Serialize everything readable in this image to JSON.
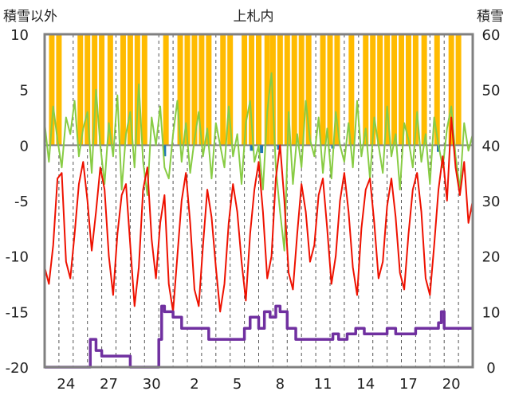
{
  "chart_data": {
    "type": "line",
    "title": "上札内",
    "left_axis_label": "積雪以外",
    "right_axis_label": "積雪",
    "left_ylim": [
      -20,
      10
    ],
    "right_ylim": [
      0,
      60
    ],
    "left_ticks": [
      "10",
      "5",
      "0",
      "-5",
      "-10",
      "-15",
      "-20"
    ],
    "right_ticks": [
      "60",
      "50",
      "40",
      "30",
      "20",
      "10",
      "0"
    ],
    "x_ticks": [
      "24",
      "27",
      "30",
      "2",
      "5",
      "8",
      "11",
      "14",
      "17",
      "20"
    ],
    "x_tick_positions": [
      1.5,
      4.5,
      7.5,
      10.5,
      13.5,
      16.5,
      19.5,
      22.5,
      25.5,
      28.5
    ],
    "x_range": [
      0,
      30
    ],
    "grid": "vertical dashed daily",
    "colors": {
      "temperature": "#ee1100",
      "sunshine": "#ffbb00",
      "wind": "#88cc44",
      "precipitation": "#1f77b4",
      "snow_depth": "#7030a0",
      "zero_line": "#808080",
      "frame": "#808080"
    },
    "series": [
      {
        "key": "sunshine",
        "axis": "left",
        "style": "bar",
        "x": [
          0.5,
          1.0,
          2.5,
          3.0,
          3.5,
          4.0,
          4.6,
          5.5,
          6.0,
          6.5,
          7.0,
          8.5,
          9.5,
          10.0,
          10.5,
          11.0,
          11.5,
          12.5,
          13.0,
          14.0,
          14.5,
          15.0,
          15.6,
          16.0,
          16.5,
          17.0,
          17.5,
          18.0,
          18.5,
          19.5,
          20.0,
          20.5,
          21.5,
          22.5,
          23.0,
          23.5,
          24.0,
          24.5,
          25.0,
          25.5,
          26.0,
          26.6,
          27.5,
          28.5,
          29.0
        ],
        "values": [
          10,
          10,
          10,
          10,
          10,
          10,
          10,
          10,
          10,
          10,
          10,
          10,
          10,
          10,
          10,
          10,
          10,
          10,
          10,
          10,
          10,
          10,
          10,
          10,
          10,
          10,
          10,
          10,
          10,
          10,
          10,
          10,
          10,
          10,
          10,
          10,
          10,
          10,
          10,
          10,
          10,
          10,
          10,
          10,
          10
        ]
      },
      {
        "key": "wind",
        "axis": "left",
        "style": "line",
        "x": [
          0.0,
          0.3,
          0.6,
          0.9,
          1.2,
          1.5,
          1.8,
          2.1,
          2.4,
          2.7,
          3.0,
          3.3,
          3.6,
          3.9,
          4.2,
          4.5,
          4.8,
          5.1,
          5.4,
          5.7,
          6.0,
          6.3,
          6.6,
          6.9,
          7.2,
          7.5,
          7.8,
          8.1,
          8.4,
          8.7,
          9.0,
          9.3,
          9.6,
          9.9,
          10.2,
          10.5,
          10.8,
          11.1,
          11.4,
          11.7,
          12.0,
          12.3,
          12.6,
          12.9,
          13.2,
          13.5,
          13.8,
          14.1,
          14.4,
          14.7,
          15.0,
          15.3,
          15.6,
          15.9,
          16.2,
          16.5,
          16.8,
          17.1,
          17.4,
          17.7,
          18.0,
          18.3,
          18.6,
          18.9,
          19.2,
          19.5,
          19.8,
          20.1,
          20.4,
          20.7,
          21.0,
          21.3,
          21.6,
          21.9,
          22.2,
          22.5,
          22.8,
          23.1,
          23.4,
          23.7,
          24.0,
          24.3,
          24.6,
          24.9,
          25.2,
          25.5,
          25.8,
          26.1,
          26.4,
          26.7,
          27.0,
          27.3,
          27.6,
          27.9,
          28.2,
          28.5,
          28.8,
          29.1,
          29.4,
          29.7,
          30.0
        ],
        "values": [
          2.0,
          -1.5,
          3.5,
          0.5,
          -2.0,
          2.5,
          1.0,
          4.0,
          -1.0,
          1.5,
          3.0,
          -2.5,
          5.0,
          0.0,
          -3.5,
          2.0,
          -1.0,
          4.5,
          -4.0,
          1.0,
          3.0,
          -2.0,
          5.5,
          -1.5,
          -4.5,
          2.5,
          0.0,
          3.5,
          -2.0,
          -3.0,
          1.0,
          4.0,
          -1.5,
          2.0,
          -2.5,
          0.5,
          3.0,
          -1.0,
          1.5,
          -3.0,
          2.0,
          0.0,
          -2.0,
          3.5,
          -1.0,
          1.0,
          -3.5,
          2.0,
          4.0,
          -1.5,
          0.0,
          -4.0,
          3.0,
          6.5,
          -2.0,
          -6.0,
          -9.5,
          3.0,
          -3.5,
          1.0,
          -2.0,
          4.0,
          0.5,
          -1.0,
          2.5,
          -2.5,
          1.5,
          -3.0,
          3.0,
          0.0,
          -1.5,
          2.0,
          -2.0,
          4.0,
          -1.0,
          1.5,
          -3.0,
          2.5,
          0.0,
          -2.5,
          3.5,
          -1.0,
          1.0,
          -4.0,
          2.0,
          0.5,
          -2.0,
          3.0,
          -1.5,
          1.0,
          -3.5,
          2.5,
          0.0,
          -2.0,
          1.5,
          3.5,
          -1.0,
          -4.0,
          2.0,
          -0.5,
          1.0
        ]
      },
      {
        "key": "temperature",
        "axis": "left",
        "style": "line",
        "x": [
          0.0,
          0.3,
          0.6,
          0.9,
          1.2,
          1.5,
          1.8,
          2.1,
          2.4,
          2.7,
          3.0,
          3.3,
          3.6,
          3.9,
          4.2,
          4.5,
          4.8,
          5.1,
          5.4,
          5.7,
          6.0,
          6.3,
          6.6,
          6.9,
          7.2,
          7.5,
          7.8,
          8.1,
          8.4,
          8.7,
          9.0,
          9.3,
          9.6,
          9.9,
          10.2,
          10.5,
          10.8,
          11.1,
          11.4,
          11.7,
          12.0,
          12.3,
          12.6,
          12.9,
          13.2,
          13.5,
          13.8,
          14.1,
          14.4,
          14.7,
          15.0,
          15.3,
          15.6,
          15.9,
          16.2,
          16.5,
          16.8,
          17.1,
          17.4,
          17.7,
          18.0,
          18.3,
          18.6,
          18.9,
          19.2,
          19.5,
          19.8,
          20.1,
          20.4,
          20.7,
          21.0,
          21.3,
          21.6,
          21.9,
          22.2,
          22.5,
          22.8,
          23.1,
          23.4,
          23.7,
          24.0,
          24.3,
          24.6,
          24.9,
          25.2,
          25.5,
          25.8,
          26.1,
          26.4,
          26.7,
          27.0,
          27.3,
          27.6,
          27.9,
          28.2,
          28.5,
          28.8,
          29.1,
          29.4,
          29.7,
          30.0
        ],
        "values": [
          -11.0,
          -12.5,
          -9.0,
          -3.0,
          -2.5,
          -10.5,
          -12.0,
          -8.0,
          -3.5,
          -1.5,
          -5.0,
          -9.5,
          -6.0,
          -2.0,
          -4.0,
          -10.0,
          -13.5,
          -8.0,
          -4.5,
          -3.5,
          -9.0,
          -14.5,
          -11.0,
          -4.0,
          -2.0,
          -8.5,
          -12.0,
          -7.0,
          -4.5,
          -12.5,
          -15.0,
          -10.0,
          -5.0,
          -2.5,
          -7.0,
          -13.0,
          -14.5,
          -9.0,
          -4.0,
          -6.5,
          -11.0,
          -15.0,
          -12.5,
          -7.0,
          -3.5,
          -6.0,
          -10.5,
          -14.0,
          -8.0,
          -4.0,
          -1.5,
          -6.0,
          -12.0,
          -10.0,
          -3.0,
          0.0,
          -5.0,
          -11.5,
          -13.0,
          -8.0,
          -3.5,
          -6.0,
          -10.5,
          -9.0,
          -4.5,
          -3.0,
          -7.5,
          -12.5,
          -10.0,
          -5.0,
          -2.5,
          -6.0,
          -11.0,
          -13.5,
          -7.5,
          -4.0,
          -3.0,
          -7.0,
          -12.0,
          -10.5,
          -5.5,
          -3.0,
          -6.5,
          -11.5,
          -13.0,
          -8.0,
          -4.0,
          -2.5,
          -6.0,
          -12.0,
          -13.5,
          -9.0,
          -4.0,
          -1.0,
          -5.0,
          2.5,
          -2.0,
          -4.5,
          -1.5,
          -7.0,
          -5.0
        ]
      },
      {
        "key": "precipitation",
        "axis": "left",
        "style": "bar",
        "x": [
          8.4,
          14.5,
          15.2,
          16.4,
          20.2,
          27.6
        ],
        "values": [
          -1.0,
          -0.5,
          -0.7,
          -0.4,
          -0.3,
          -0.6
        ]
      },
      {
        "key": "snow_depth",
        "axis": "right",
        "style": "step",
        "x": [
          0.0,
          3.0,
          3.2,
          3.4,
          3.6,
          3.8,
          4.0,
          5.5,
          6.0,
          7.5,
          8.0,
          8.2,
          8.4,
          9.0,
          9.6,
          10.2,
          11.5,
          12.0,
          13.5,
          14.0,
          14.4,
          15.0,
          15.4,
          15.8,
          16.2,
          16.5,
          17.0,
          17.6,
          18.2,
          18.6,
          19.2,
          20.2,
          20.6,
          21.2,
          21.8,
          22.4,
          22.8,
          23.4,
          24.0,
          24.6,
          25.0,
          25.6,
          26.0,
          26.6,
          27.2,
          27.6,
          27.8,
          28.0,
          28.2,
          28.6,
          29.0,
          30.0
        ],
        "values": [
          0,
          0,
          5,
          5,
          3,
          3,
          2,
          2,
          0,
          0,
          5,
          11,
          10,
          9,
          7,
          7,
          5,
          5,
          5,
          7,
          9,
          7,
          10,
          9,
          11,
          10,
          7,
          5,
          5,
          5,
          5,
          6,
          5,
          6,
          7,
          6,
          6,
          6,
          7,
          6,
          6,
          6,
          7,
          7,
          7,
          8,
          10,
          7,
          7,
          7,
          7,
          7
        ]
      }
    ]
  }
}
